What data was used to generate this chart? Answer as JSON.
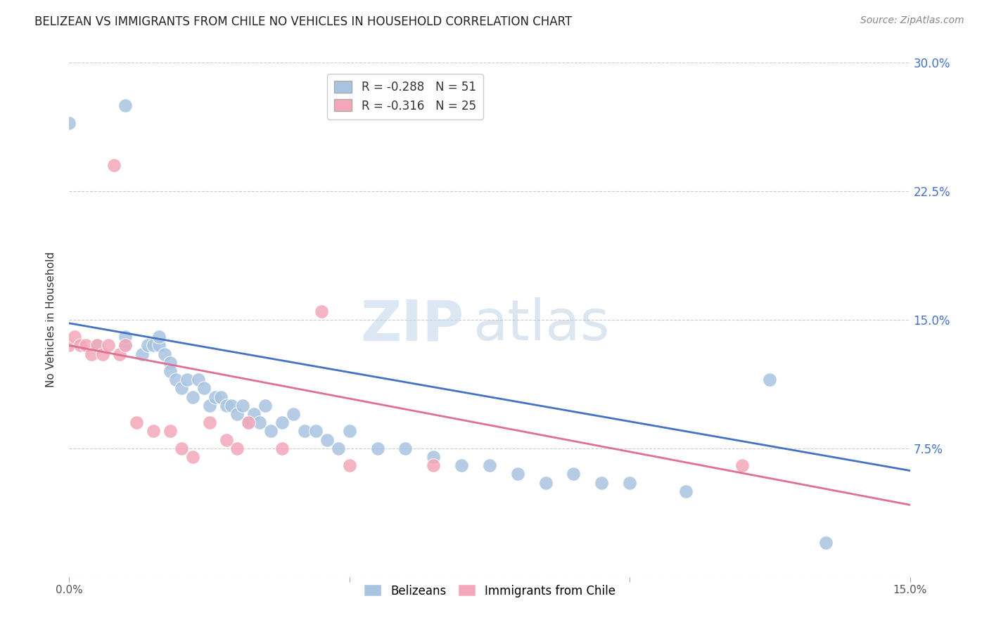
{
  "title": "BELIZEAN VS IMMIGRANTS FROM CHILE NO VEHICLES IN HOUSEHOLD CORRELATION CHART",
  "source": "Source: ZipAtlas.com",
  "ylabel": "No Vehicles in Household",
  "xlim": [
    0.0,
    0.15
  ],
  "ylim": [
    0.0,
    0.3
  ],
  "ytick_labels_right": [
    "30.0%",
    "22.5%",
    "15.0%",
    "7.5%",
    ""
  ],
  "ytick_vals": [
    0.3,
    0.225,
    0.15,
    0.075,
    0.0
  ],
  "grid_color": "#cccccc",
  "background_color": "#ffffff",
  "belizean_color": "#a8c4e0",
  "chile_color": "#f4a7b9",
  "line_blue": "#4472c4",
  "line_pink": "#e07090",
  "legend_R_blue": "-0.288",
  "legend_N_blue": "51",
  "legend_R_pink": "-0.316",
  "legend_N_pink": "25",
  "watermark_zip": "ZIP",
  "watermark_atlas": "atlas",
  "belizean_x": [
    0.0,
    0.005,
    0.01,
    0.01,
    0.01,
    0.013,
    0.014,
    0.015,
    0.016,
    0.016,
    0.017,
    0.018,
    0.018,
    0.019,
    0.02,
    0.021,
    0.022,
    0.023,
    0.024,
    0.025,
    0.026,
    0.027,
    0.028,
    0.029,
    0.03,
    0.031,
    0.032,
    0.033,
    0.034,
    0.035,
    0.036,
    0.038,
    0.04,
    0.042,
    0.044,
    0.046,
    0.048,
    0.05,
    0.055,
    0.06,
    0.065,
    0.07,
    0.075,
    0.08,
    0.085,
    0.09,
    0.095,
    0.1,
    0.11,
    0.125,
    0.135
  ],
  "belizean_y": [
    0.265,
    0.135,
    0.135,
    0.14,
    0.275,
    0.13,
    0.135,
    0.135,
    0.135,
    0.14,
    0.13,
    0.125,
    0.12,
    0.115,
    0.11,
    0.115,
    0.105,
    0.115,
    0.11,
    0.1,
    0.105,
    0.105,
    0.1,
    0.1,
    0.095,
    0.1,
    0.09,
    0.095,
    0.09,
    0.1,
    0.085,
    0.09,
    0.095,
    0.085,
    0.085,
    0.08,
    0.075,
    0.085,
    0.075,
    0.075,
    0.07,
    0.065,
    0.065,
    0.06,
    0.055,
    0.06,
    0.055,
    0.055,
    0.05,
    0.115,
    0.02
  ],
  "chile_x": [
    0.0,
    0.001,
    0.002,
    0.003,
    0.004,
    0.005,
    0.006,
    0.007,
    0.008,
    0.009,
    0.01,
    0.012,
    0.015,
    0.018,
    0.02,
    0.022,
    0.025,
    0.028,
    0.03,
    0.032,
    0.038,
    0.045,
    0.05,
    0.065,
    0.12
  ],
  "chile_y": [
    0.135,
    0.14,
    0.135,
    0.135,
    0.13,
    0.135,
    0.13,
    0.135,
    0.24,
    0.13,
    0.135,
    0.09,
    0.085,
    0.085,
    0.075,
    0.07,
    0.09,
    0.08,
    0.075,
    0.09,
    0.075,
    0.155,
    0.065,
    0.065,
    0.065
  ],
  "blue_line_x": [
    0.0,
    0.15
  ],
  "blue_line_y": [
    0.148,
    0.062
  ],
  "pink_line_x": [
    0.0,
    0.15
  ],
  "pink_line_y": [
    0.135,
    0.042
  ]
}
